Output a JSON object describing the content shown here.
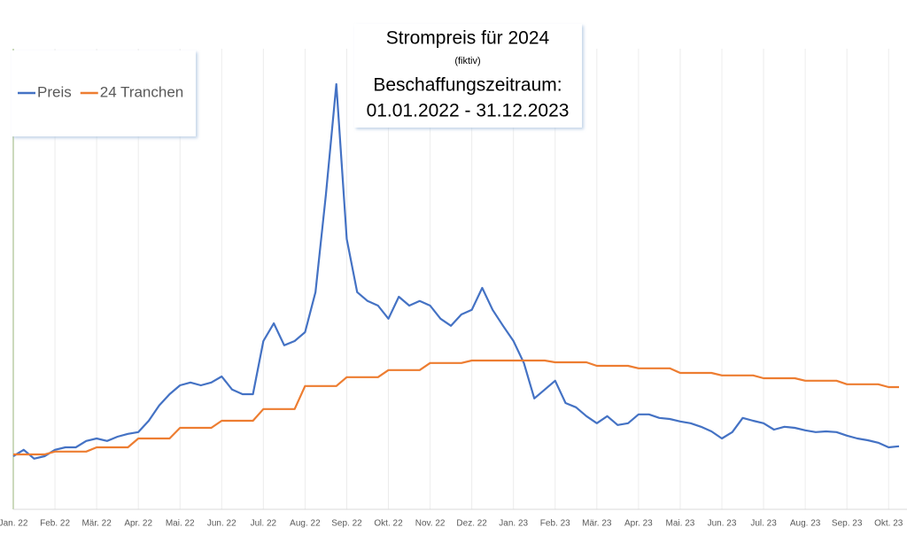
{
  "chart_data": {
    "type": "line",
    "title": "Strompreis für 2024",
    "subtitle": "(fiktiv)",
    "annotations": [
      "Beschaffungszeitraum:",
      "01.01.2022 - 31.12.2023"
    ],
    "legend": "top-left",
    "xlim": [
      0,
      21.25
    ],
    "ylim": [
      0,
      13
    ],
    "xticks": [
      {
        "value": 0,
        "label": "Jan. 22"
      },
      {
        "value": 1,
        "label": "Feb. 22"
      },
      {
        "value": 2,
        "label": "Mär. 22"
      },
      {
        "value": 3,
        "label": "Apr. 22"
      },
      {
        "value": 4,
        "label": "Mai. 22"
      },
      {
        "value": 5,
        "label": "Jun. 22"
      },
      {
        "value": 6,
        "label": "Jul. 22"
      },
      {
        "value": 7,
        "label": "Aug. 22"
      },
      {
        "value": 8,
        "label": "Sep. 22"
      },
      {
        "value": 9,
        "label": "Okt. 22"
      },
      {
        "value": 10,
        "label": "Nov. 22"
      },
      {
        "value": 11,
        "label": "Dez. 22"
      },
      {
        "value": 12,
        "label": "Jan. 23"
      },
      {
        "value": 13,
        "label": "Feb. 23"
      },
      {
        "value": 14,
        "label": "Mär. 23"
      },
      {
        "value": 15,
        "label": "Apr. 23"
      },
      {
        "value": 16,
        "label": "Mai. 23"
      },
      {
        "value": 17,
        "label": "Jun. 23"
      },
      {
        "value": 18,
        "label": "Jul. 23"
      },
      {
        "value": 19,
        "label": "Aug. 23"
      },
      {
        "value": 20,
        "label": "Sep. 23"
      },
      {
        "value": 21,
        "label": "Okt. 23"
      }
    ],
    "x": [
      0,
      0.25,
      0.5,
      0.75,
      1,
      1.25,
      1.5,
      1.75,
      2,
      2.25,
      2.5,
      2.75,
      3,
      3.25,
      3.5,
      3.75,
      4,
      4.25,
      4.5,
      4.75,
      5,
      5.25,
      5.5,
      5.75,
      6,
      6.25,
      6.5,
      6.75,
      7,
      7.25,
      7.5,
      7.75,
      8,
      8.25,
      8.5,
      8.75,
      9,
      9.25,
      9.5,
      9.75,
      10,
      10.25,
      10.5,
      10.75,
      11,
      11.25,
      11.5,
      11.75,
      12,
      12.25,
      12.5,
      12.75,
      13,
      13.25,
      13.5,
      13.75,
      14,
      14.25,
      14.5,
      14.75,
      15,
      15.25,
      15.5,
      15.75,
      16,
      16.25,
      16.5,
      16.75,
      17,
      17.25,
      17.5,
      17.75,
      18,
      18.25,
      18.5,
      18.75,
      19,
      19.25,
      19.5,
      19.75,
      20,
      20.25,
      20.5,
      20.75,
      21,
      21.25
    ],
    "series": [
      {
        "name": "Preis",
        "color": "#4472c4",
        "values": [
          1.5,
          1.68,
          1.43,
          1.5,
          1.68,
          1.75,
          1.75,
          1.93,
          2.0,
          1.93,
          2.05,
          2.13,
          2.18,
          2.5,
          2.93,
          3.25,
          3.5,
          3.58,
          3.5,
          3.58,
          3.75,
          3.38,
          3.25,
          3.25,
          4.75,
          5.25,
          4.63,
          4.75,
          5.0,
          6.13,
          8.88,
          12.0,
          7.63,
          6.13,
          5.88,
          5.75,
          5.38,
          6.0,
          5.75,
          5.88,
          5.75,
          5.38,
          5.18,
          5.5,
          5.63,
          6.25,
          5.63,
          5.18,
          4.75,
          4.13,
          3.13,
          3.38,
          3.63,
          3.0,
          2.88,
          2.63,
          2.43,
          2.63,
          2.38,
          2.43,
          2.68,
          2.68,
          2.58,
          2.55,
          2.48,
          2.43,
          2.33,
          2.2,
          2.0,
          2.18,
          2.58,
          2.5,
          2.43,
          2.25,
          2.33,
          2.3,
          2.23,
          2.18,
          2.2,
          2.18,
          2.08,
          2.0,
          1.95,
          1.88,
          1.75,
          1.78
        ]
      },
      {
        "name": "24 Tranchen",
        "color": "#ed7d31",
        "values": [
          1.55,
          1.55,
          1.55,
          1.55,
          1.63,
          1.63,
          1.63,
          1.63,
          1.75,
          1.75,
          1.75,
          1.75,
          2.0,
          2.0,
          2.0,
          2.0,
          2.3,
          2.3,
          2.3,
          2.3,
          2.5,
          2.5,
          2.5,
          2.5,
          2.83,
          2.83,
          2.83,
          2.83,
          3.48,
          3.48,
          3.48,
          3.48,
          3.73,
          3.73,
          3.73,
          3.73,
          3.93,
          3.93,
          3.93,
          3.93,
          4.13,
          4.13,
          4.13,
          4.13,
          4.2,
          4.2,
          4.2,
          4.2,
          4.2,
          4.2,
          4.2,
          4.2,
          4.15,
          4.15,
          4.15,
          4.15,
          4.05,
          4.05,
          4.05,
          4.05,
          3.98,
          3.98,
          3.98,
          3.98,
          3.85,
          3.85,
          3.85,
          3.85,
          3.78,
          3.78,
          3.78,
          3.78,
          3.7,
          3.7,
          3.7,
          3.7,
          3.63,
          3.63,
          3.63,
          3.63,
          3.53,
          3.53,
          3.53,
          3.53,
          3.45,
          3.45
        ]
      }
    ]
  }
}
